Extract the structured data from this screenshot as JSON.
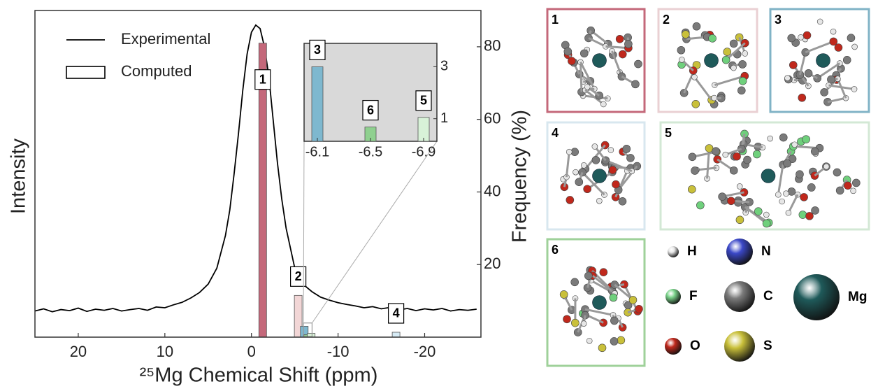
{
  "chart_data": [
    {
      "type": "combo",
      "x_label": "²⁵Mg Chemical Shift (ppm)",
      "y_label": "Intensity",
      "y2_label": "Frequency (%)",
      "xlim": [
        25,
        -26.5
      ],
      "xticks": [
        20,
        10,
        0,
        -10,
        -20
      ],
      "ylim": [
        0,
        90
      ],
      "yticks": [
        20,
        40,
        60,
        80
      ],
      "legend": "upper left",
      "series": [
        {
          "name": "Experimental",
          "type": "line",
          "color": "#000000",
          "x": [
            25,
            24,
            23,
            22,
            21,
            20,
            19,
            18,
            17,
            16,
            15,
            14,
            13,
            12,
            11,
            10,
            9,
            8,
            7,
            6,
            5,
            4,
            3,
            2.5,
            2,
            1.5,
            1,
            0.5,
            0,
            -0.5,
            -1,
            -1.5,
            -2,
            -2.5,
            -3,
            -3.5,
            -4,
            -5,
            -6,
            -7,
            -8,
            -9,
            -10,
            -11,
            -12,
            -13,
            -14,
            -15,
            -16,
            -17,
            -18,
            -19,
            -20,
            -21,
            -22,
            -23,
            -24,
            -25,
            -26
          ],
          "values": [
            7.2,
            7.8,
            7.0,
            7.6,
            7.3,
            8.0,
            7.1,
            7.7,
            7.4,
            7.9,
            7.2,
            7.6,
            7.9,
            7.4,
            8.3,
            8.1,
            8.9,
            9.6,
            10.8,
            12.3,
            14.6,
            19,
            28,
            35,
            45,
            56,
            68,
            78,
            84,
            86,
            85,
            80,
            72,
            60,
            48,
            38,
            30,
            19,
            14.5,
            12.5,
            11,
            10.2,
            9.5,
            9.0,
            8.6,
            8.1,
            8.4,
            7.8,
            8.2,
            7.5,
            7.9,
            7.3,
            7.8,
            7.5,
            7.9,
            7.2,
            7.6,
            7.4,
            7.7
          ]
        },
        {
          "name": "Computed",
          "type": "bar",
          "labels": [
            "1",
            "2",
            null,
            null,
            null,
            "4"
          ],
          "x": [
            -1.3,
            -5.4,
            -6.1,
            -6.5,
            -6.9,
            -16.7
          ],
          "values": [
            81,
            11.5,
            3.0,
            0.68,
            1.05,
            1.35
          ],
          "colors": [
            "#c4687a",
            "#f2d6d6",
            "#7eb8cf",
            "#8fd08f",
            "#d8f2d8",
            "#d6ebf5"
          ]
        }
      ]
    },
    {
      "type": "bar",
      "labels": [
        "3",
        "6",
        "5"
      ],
      "x": [
        -6.1,
        -6.5,
        -6.9
      ],
      "values": [
        3.0,
        0.68,
        1.05
      ],
      "colors": [
        "#7eb8cf",
        "#8fd08f",
        "#d8f2d8"
      ],
      "xlim": [
        -6.0,
        -7.0
      ],
      "xticks": [
        -6.1,
        -6.5,
        -6.9
      ],
      "ylim": [
        0.13,
        3.9
      ],
      "yticks": [
        1,
        3
      ],
      "background": "#d9d9d9"
    }
  ],
  "panels": {
    "structures": [
      "1",
      "2",
      "3",
      "4",
      "5",
      "6"
    ],
    "atoms": [
      "H",
      "N",
      "F",
      "C",
      "Mg",
      "O",
      "S"
    ]
  }
}
